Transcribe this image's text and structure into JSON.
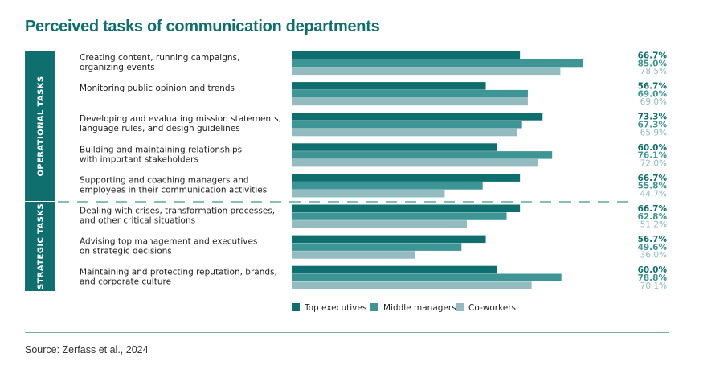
{
  "title": "Perceived tasks of communication departments",
  "source": "Source: Zerfass et al., 2024",
  "colors": {
    "title": "#0f6e6e",
    "top_executives": "#0f6e6e",
    "middle_managers": "#3d9596",
    "co_workers": "#94bcc0",
    "side_band": "#0f6e6e"
  },
  "chart_data": {
    "type": "bar",
    "orientation": "horizontal",
    "xlim": [
      0,
      100
    ],
    "groups": [
      {
        "name": "OPERATIONAL TASKS",
        "category_indices": [
          0,
          1,
          2,
          3,
          4
        ]
      },
      {
        "name": "STRATEGIC TASKS",
        "category_indices": [
          5,
          6,
          7
        ]
      }
    ],
    "categories": [
      [
        "Creating content, running campaigns,",
        "organizing events"
      ],
      [
        "Monitoring public opinion and trends"
      ],
      [
        "Developing and evaluating mission statements,",
        "language rules, and design guidelines"
      ],
      [
        "Building and maintaining relationships",
        "with important stakeholders"
      ],
      [
        "Supporting and coaching managers and",
        "employees in their communication activities"
      ],
      [
        "Dealing with crises, transformation processes,",
        "and other critical situations"
      ],
      [
        "Advising top management and executives",
        "on strategic decisions"
      ],
      [
        "Maintaining and protecting reputation, brands,",
        "and corporate culture"
      ]
    ],
    "series": [
      {
        "name": "Top executives",
        "color": "#0f6e6e",
        "values": [
          66.7,
          56.7,
          73.3,
          60.0,
          66.7,
          66.7,
          56.7,
          60.0
        ]
      },
      {
        "name": "Middle managers",
        "color": "#3d9596",
        "values": [
          85.0,
          69.0,
          67.3,
          76.1,
          55.8,
          62.8,
          49.6,
          78.8
        ]
      },
      {
        "name": "Co-workers",
        "color": "#94bcc0",
        "values": [
          78.5,
          69.0,
          65.9,
          72.0,
          44.7,
          51.2,
          36.0,
          70.1
        ]
      }
    ],
    "legend_position": "bottom",
    "grid": false
  }
}
